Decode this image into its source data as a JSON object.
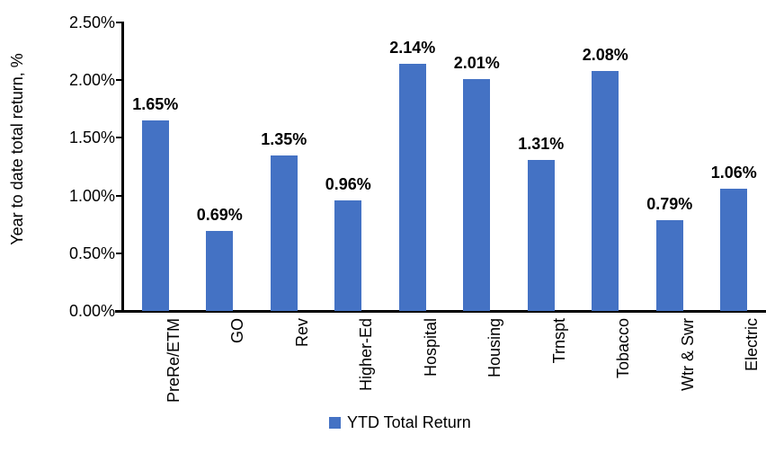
{
  "chart_data": {
    "type": "bar",
    "title": "",
    "ylabel": "Year to date total return, %",
    "xlabel": "",
    "categories": [
      "PreRe/ETM",
      "GO",
      "Rev",
      "Higher-Ed",
      "Hospital",
      "Housing",
      "Trnspt",
      "Tobacco",
      "Wtr & Swr",
      "Electric"
    ],
    "values": [
      1.65,
      0.69,
      1.35,
      0.96,
      2.14,
      2.01,
      1.31,
      2.08,
      0.79,
      1.06
    ],
    "value_labels": [
      "1.65%",
      "0.69%",
      "1.35%",
      "0.96%",
      "2.14%",
      "2.01%",
      "1.31%",
      "2.08%",
      "0.79%",
      "1.06%"
    ],
    "y_tick_labels": [
      "0.00%",
      "0.50%",
      "1.00%",
      "1.50%",
      "2.00%",
      "2.50%"
    ],
    "y_tick_values": [
      0,
      0.5,
      1.0,
      1.5,
      2.0,
      2.5
    ],
    "ylim": [
      0,
      2.5
    ],
    "grid": "off",
    "legend_position": "bottom",
    "legend": {
      "label": "YTD Total Return"
    },
    "colors": {
      "bar": "#4472C4",
      "axis": "#000000",
      "text": "#000000"
    }
  }
}
